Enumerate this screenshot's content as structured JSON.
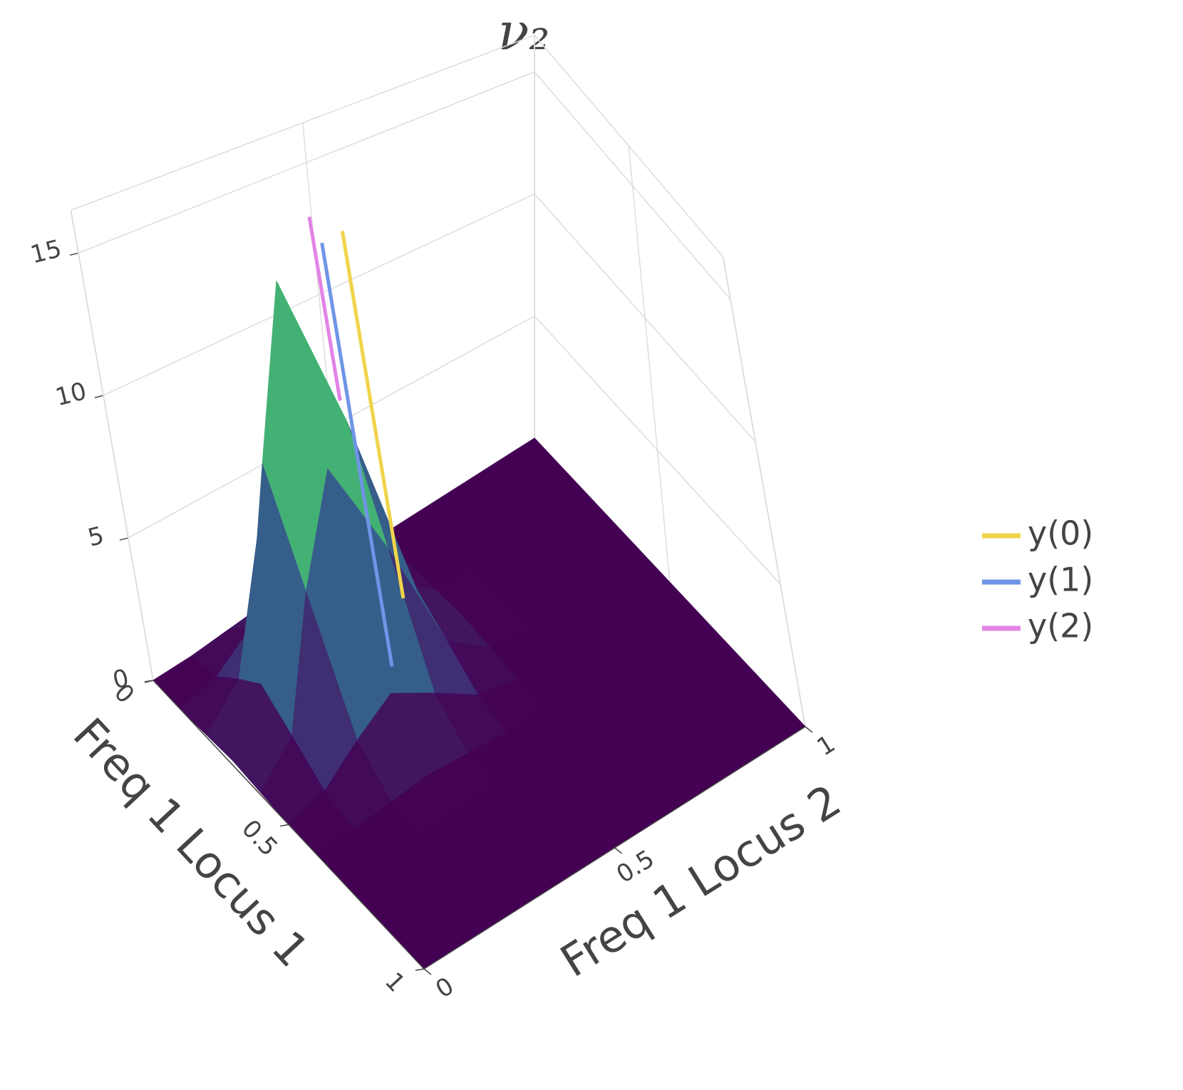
{
  "chart_data": {
    "type": "surface3d",
    "title": "ν₂",
    "x_label": "Freq 1 Locus 1",
    "y_label": "Freq 1 Locus 2",
    "xlim": [
      0,
      1
    ],
    "ylim": [
      0,
      1
    ],
    "zlim": [
      0,
      16.5
    ],
    "xticks": [
      0,
      0.5,
      1
    ],
    "yticks": [
      0,
      0.5,
      1
    ],
    "zticks": [
      0,
      5,
      10,
      15
    ],
    "colorscale": [
      "#440154",
      "#3b528b",
      "#21918c",
      "#5ec962",
      "#fde725"
    ],
    "surface": {
      "x": [
        0,
        0.1,
        0.2,
        0.3,
        0.4,
        0.5,
        0.6,
        0.7,
        0.8,
        0.9,
        1
      ],
      "y": [
        0,
        0.1,
        0.2,
        0.3,
        0.4,
        0.5,
        0.6,
        0.7,
        0.8,
        0.9,
        1
      ],
      "z": [
        [
          0,
          0,
          0.1,
          0.2,
          0.1,
          0,
          0,
          0,
          0,
          0,
          0
        ],
        [
          0,
          0.3,
          1.2,
          2.0,
          1.2,
          0.3,
          0,
          0,
          0,
          0,
          0
        ],
        [
          0.1,
          1.2,
          5.3,
          8.8,
          5.3,
          1.2,
          0.1,
          0,
          0,
          0,
          0
        ],
        [
          0.2,
          2.0,
          8.8,
          14.5,
          8.8,
          2.0,
          0.2,
          0,
          0,
          0,
          0
        ],
        [
          0.1,
          1.2,
          5.3,
          8.8,
          5.3,
          1.2,
          0.1,
          0,
          0,
          0,
          0
        ],
        [
          0,
          0.3,
          1.2,
          2.0,
          1.2,
          0.3,
          0,
          0,
          0,
          0,
          0
        ],
        [
          0,
          0,
          0.1,
          0.2,
          0.1,
          0,
          0,
          0,
          0,
          0,
          0
        ],
        [
          0,
          0,
          0,
          0,
          0,
          0,
          0,
          0,
          0,
          0,
          0
        ],
        [
          0,
          0,
          0,
          0,
          0,
          0,
          0,
          0,
          0,
          0,
          0
        ],
        [
          0,
          0,
          0,
          0,
          0,
          0,
          0,
          0,
          0,
          0,
          0
        ],
        [
          0,
          0,
          0,
          0,
          0,
          0,
          0,
          0,
          0,
          0,
          0
        ]
      ]
    },
    "series": [
      {
        "name": "y(0)",
        "color": "#f0d44a",
        "x": [
          0.37,
          0.37
        ],
        "y": [
          0.43,
          0.43
        ],
        "z": [
          3,
          16
        ]
      },
      {
        "name": "y(1)",
        "color": "#6f95e6",
        "x": [
          0.333,
          0.333
        ],
        "y": [
          0.396,
          0.396
        ],
        "z": [
          0.5,
          15.5
        ]
      },
      {
        "name": "y(2)",
        "color": "#e283e6",
        "x": [
          0.33,
          0.33
        ],
        "y": [
          0.38,
          0.38
        ],
        "z": [
          10,
          16.5
        ]
      }
    ]
  }
}
